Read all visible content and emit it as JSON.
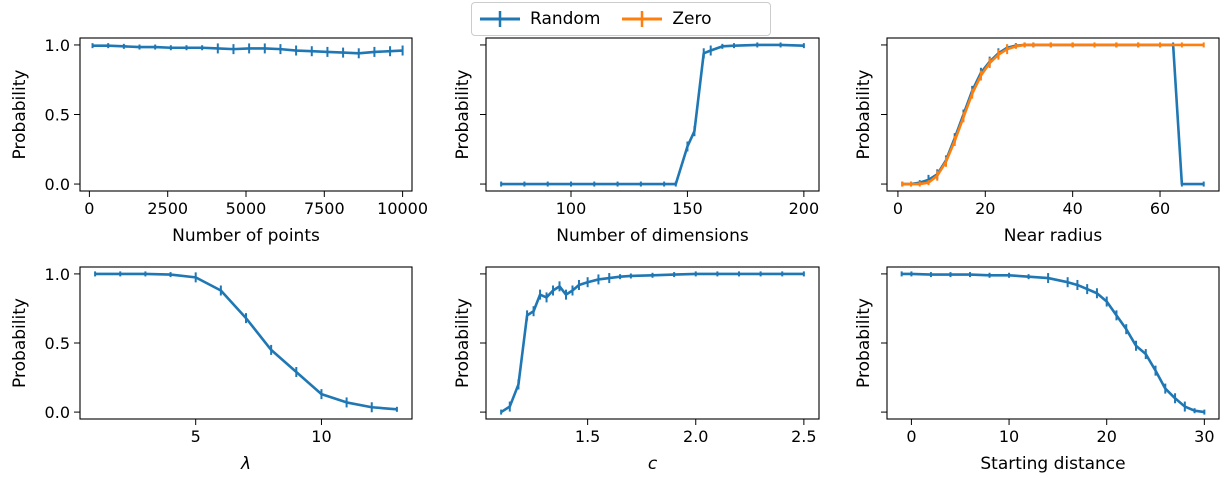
{
  "legend": {
    "placement": "top-center",
    "entries": [
      {
        "label": "Random",
        "color": "#1f77b4"
      },
      {
        "label": "Zero",
        "color": "#ff7f0e"
      }
    ]
  },
  "chart_data": [
    {
      "type": "line",
      "xlabel": "Number of points",
      "ylabel": "Probability",
      "xlim": [
        -300,
        10300
      ],
      "ylim": [
        -0.05,
        1.05
      ],
      "xticks": [
        {
          "v": 0,
          "label": "0"
        },
        {
          "v": 2500,
          "label": "2500"
        },
        {
          "v": 5000,
          "label": "5000"
        },
        {
          "v": 7500,
          "label": "7500"
        },
        {
          "v": 10000,
          "label": "10000"
        }
      ],
      "yticks": [
        {
          "v": 0,
          "label": "0.0"
        },
        {
          "v": 0.5,
          "label": "0.5"
        },
        {
          "v": 1,
          "label": "1.0"
        }
      ],
      "series": [
        {
          "name": "Random",
          "color": "#1f77b4",
          "x": [
            100,
            600,
            1100,
            1600,
            2100,
            2600,
            3100,
            3600,
            4100,
            4600,
            5100,
            5600,
            6100,
            6600,
            7100,
            7600,
            8100,
            8600,
            9100,
            9600,
            10000
          ],
          "y": [
            0.995,
            0.995,
            0.99,
            0.985,
            0.985,
            0.98,
            0.98,
            0.98,
            0.975,
            0.97,
            0.975,
            0.975,
            0.97,
            0.96,
            0.955,
            0.95,
            0.945,
            0.94,
            0.95,
            0.955,
            0.96
          ]
        }
      ]
    },
    {
      "type": "line",
      "xlabel": "Number of dimensions",
      "ylabel": "Probability",
      "xlim": [
        63.5,
        206.5
      ],
      "ylim": [
        -0.05,
        1.05
      ],
      "xticks": [
        {
          "v": 100,
          "label": "100"
        },
        {
          "v": 150,
          "label": "150"
        },
        {
          "v": 200,
          "label": "200"
        }
      ],
      "yticks": [
        {
          "v": 0,
          "label": ""
        },
        {
          "v": 0.5,
          "label": ""
        },
        {
          "v": 1,
          "label": ""
        }
      ],
      "series": [
        {
          "name": "Random",
          "color": "#1f77b4",
          "x": [
            70,
            80,
            90,
            100,
            110,
            120,
            130,
            140,
            145,
            150,
            153,
            157,
            160,
            165,
            170,
            180,
            190,
            200
          ],
          "y": [
            0,
            0,
            0,
            0,
            0,
            0,
            0,
            0,
            0,
            0.27,
            0.38,
            0.94,
            0.96,
            0.99,
            0.995,
            1.0,
            1.0,
            0.995
          ]
        }
      ]
    },
    {
      "type": "line",
      "xlabel": "Near radius",
      "ylabel": "Probability",
      "xlim": [
        -2.5,
        73.5
      ],
      "ylim": [
        -0.05,
        1.05
      ],
      "xticks": [
        {
          "v": 0,
          "label": "0"
        },
        {
          "v": 20,
          "label": "20"
        },
        {
          "v": 40,
          "label": "40"
        },
        {
          "v": 60,
          "label": "60"
        }
      ],
      "yticks": [
        {
          "v": 0,
          "label": ""
        },
        {
          "v": 0.5,
          "label": ""
        },
        {
          "v": 1,
          "label": ""
        }
      ],
      "series": [
        {
          "name": "Random",
          "color": "#1f77b4",
          "x": [
            1,
            3,
            5,
            7,
            9,
            11,
            13,
            15,
            17,
            19,
            21,
            23,
            25,
            27,
            29,
            31,
            35,
            40,
            45,
            50,
            55,
            60,
            63,
            65,
            70
          ],
          "y": [
            0,
            0,
            0.01,
            0.03,
            0.07,
            0.17,
            0.33,
            0.5,
            0.67,
            0.8,
            0.88,
            0.94,
            0.98,
            0.995,
            1.0,
            1.0,
            1.0,
            1.0,
            1.0,
            1.0,
            1.0,
            1.0,
            1.0,
            0.0,
            0.0
          ]
        },
        {
          "name": "Zero",
          "color": "#ff7f0e",
          "x": [
            1,
            3,
            5,
            7,
            9,
            11,
            13,
            15,
            17,
            19,
            21,
            23,
            25,
            27,
            29,
            31,
            35,
            40,
            45,
            50,
            55,
            60,
            65,
            70
          ],
          "y": [
            0,
            0,
            0,
            0.01,
            0.06,
            0.16,
            0.31,
            0.48,
            0.65,
            0.78,
            0.87,
            0.93,
            0.97,
            0.99,
            1.0,
            1.0,
            1.0,
            1.0,
            1.0,
            1.0,
            1.0,
            1.0,
            1.0,
            1.0
          ]
        }
      ]
    },
    {
      "type": "line",
      "xlabel": "λ",
      "ylabel": "Probability",
      "xlim": [
        0.4,
        13.6
      ],
      "ylim": [
        -0.05,
        1.05
      ],
      "xticks": [
        {
          "v": 5,
          "label": "5"
        },
        {
          "v": 10,
          "label": "10"
        }
      ],
      "yticks": [
        {
          "v": 0,
          "label": "0.0"
        },
        {
          "v": 0.5,
          "label": "0.5"
        },
        {
          "v": 1,
          "label": "1.0"
        }
      ],
      "series": [
        {
          "name": "Random",
          "color": "#1f77b4",
          "x": [
            1,
            2,
            3,
            4,
            5,
            6,
            7,
            8,
            9,
            10,
            11,
            12,
            13
          ],
          "y": [
            1.0,
            1.0,
            1.0,
            0.995,
            0.975,
            0.88,
            0.68,
            0.45,
            0.29,
            0.13,
            0.07,
            0.035,
            0.02
          ]
        }
      ]
    },
    {
      "type": "line",
      "xlabel": "c",
      "ylabel": "Probability",
      "xlim": [
        1.03,
        2.57
      ],
      "ylim": [
        -0.05,
        1.05
      ],
      "xticks": [
        {
          "v": 1.5,
          "label": "1.5"
        },
        {
          "v": 2.0,
          "label": "2.0"
        },
        {
          "v": 2.5,
          "label": "2.5"
        }
      ],
      "yticks": [
        {
          "v": 0,
          "label": ""
        },
        {
          "v": 0.5,
          "label": ""
        },
        {
          "v": 1,
          "label": ""
        }
      ],
      "series": [
        {
          "name": "Random",
          "color": "#1f77b4",
          "x": [
            1.1,
            1.14,
            1.18,
            1.22,
            1.25,
            1.28,
            1.31,
            1.34,
            1.37,
            1.4,
            1.43,
            1.46,
            1.5,
            1.55,
            1.6,
            1.65,
            1.7,
            1.8,
            1.9,
            2.0,
            2.1,
            2.2,
            2.3,
            2.4,
            2.5
          ],
          "y": [
            0.0,
            0.04,
            0.2,
            0.7,
            0.73,
            0.85,
            0.83,
            0.88,
            0.91,
            0.85,
            0.88,
            0.92,
            0.94,
            0.96,
            0.97,
            0.98,
            0.985,
            0.99,
            0.995,
            1.0,
            1.0,
            1.0,
            1.0,
            1.0,
            1.0
          ]
        }
      ]
    },
    {
      "type": "line",
      "xlabel": "Starting distance",
      "ylabel": "Probability",
      "xlim": [
        -2.5,
        31.5
      ],
      "ylim": [
        -0.05,
        1.05
      ],
      "xticks": [
        {
          "v": 0,
          "label": "0"
        },
        {
          "v": 10,
          "label": "10"
        },
        {
          "v": 20,
          "label": "20"
        },
        {
          "v": 30,
          "label": "30"
        }
      ],
      "yticks": [
        {
          "v": 0,
          "label": ""
        },
        {
          "v": 0.5,
          "label": ""
        },
        {
          "v": 1,
          "label": ""
        }
      ],
      "series": [
        {
          "name": "Random",
          "color": "#1f77b4",
          "x": [
            -1,
            0,
            2,
            4,
            6,
            8,
            10,
            12,
            14,
            16,
            17,
            18,
            19,
            20,
            21,
            22,
            23,
            24,
            25,
            26,
            27,
            28,
            29,
            30
          ],
          "y": [
            1.0,
            1.0,
            0.995,
            0.995,
            0.995,
            0.99,
            0.99,
            0.98,
            0.97,
            0.94,
            0.92,
            0.89,
            0.86,
            0.8,
            0.7,
            0.6,
            0.48,
            0.42,
            0.3,
            0.17,
            0.1,
            0.04,
            0.01,
            0.0
          ]
        }
      ]
    }
  ]
}
